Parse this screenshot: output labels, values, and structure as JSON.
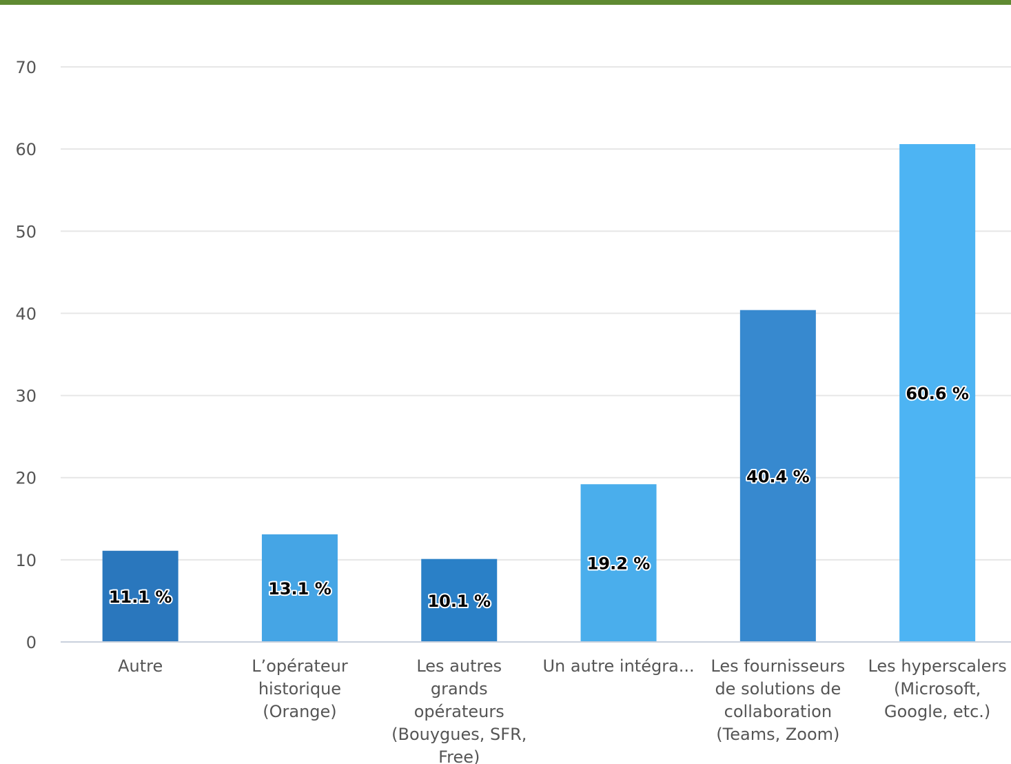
{
  "chart_data": {
    "type": "bar",
    "categories": [
      [
        "Autre"
      ],
      [
        "L’opérateur",
        "historique",
        "(Orange)"
      ],
      [
        "Les autres",
        "grands",
        "opérateurs",
        "(Bouygues, SFR,",
        "Free)"
      ],
      [
        "Un autre intégra..."
      ],
      [
        "Les fournisseurs",
        "de solutions de",
        "collaboration",
        "(Teams, Zoom)"
      ],
      [
        "Les hyperscalers",
        "(Microsoft,",
        "Google, etc.)"
      ]
    ],
    "values": [
      11.1,
      13.1,
      10.1,
      19.2,
      40.4,
      60.6
    ],
    "data_labels": [
      "11.1 %",
      "13.1 %",
      "10.1 %",
      "19.2 %",
      "40.4 %",
      "60.6 %"
    ],
    "colors": [
      "#2a77bd",
      "#45a5e5",
      "#2a80c7",
      "#4aaeec",
      "#3789cf",
      "#4db4f3"
    ],
    "ylim": [
      0,
      70
    ],
    "yticks": [
      0,
      10,
      20,
      30,
      40,
      50,
      60,
      70
    ],
    "grid": true,
    "gridColor": "#e6e6e6",
    "axisColor": "#c8d0dc",
    "title": "",
    "xlabel": "",
    "ylabel": ""
  },
  "accent": {
    "top_bar_color": "#5f8a32"
  }
}
